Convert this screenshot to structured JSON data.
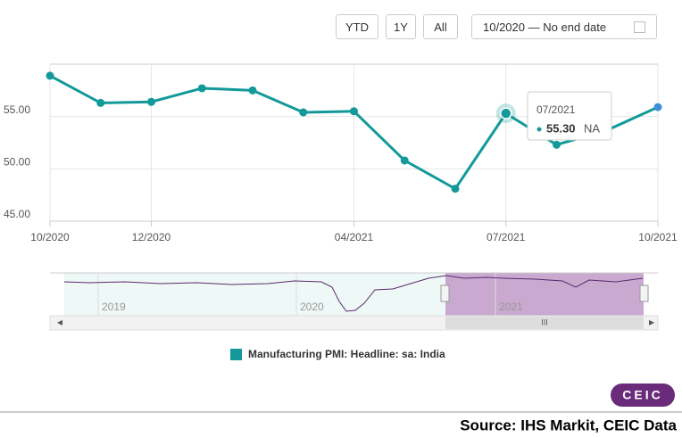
{
  "chart_data": {
    "type": "line",
    "categories": [
      "10/2020",
      null,
      "12/2020",
      null,
      null,
      null,
      "04/2021",
      null,
      null,
      "07/2021",
      null,
      null,
      "10/2021"
    ],
    "series": [
      {
        "name": "Manufacturing PMI: Headline: sa: India",
        "color": "#13999a",
        "values": [
          58.9,
          56.3,
          56.4,
          57.7,
          57.5,
          55.4,
          55.5,
          50.8,
          48.1,
          55.3,
          52.3,
          53.7,
          55.9
        ]
      }
    ],
    "ylim": [
      45,
      60
    ],
    "yticks": [
      {
        "value": 45,
        "label": "45.00"
      },
      {
        "value": 50,
        "label": "50.00"
      },
      {
        "value": 55,
        "label": "55.00"
      }
    ],
    "grid": true,
    "tooltip": {
      "value_label": "55.30",
      "unit": "NA"
    },
    "navigator_labels": [
      "2019",
      "2020",
      "2021"
    ]
  },
  "controls": {
    "buttons": [
      "YTD",
      "1Y",
      "All"
    ],
    "range_start": "10/2020",
    "range_end": "No end date"
  },
  "source": "Source: IHS Markit, CEIC Data",
  "logo": "CEIC"
}
